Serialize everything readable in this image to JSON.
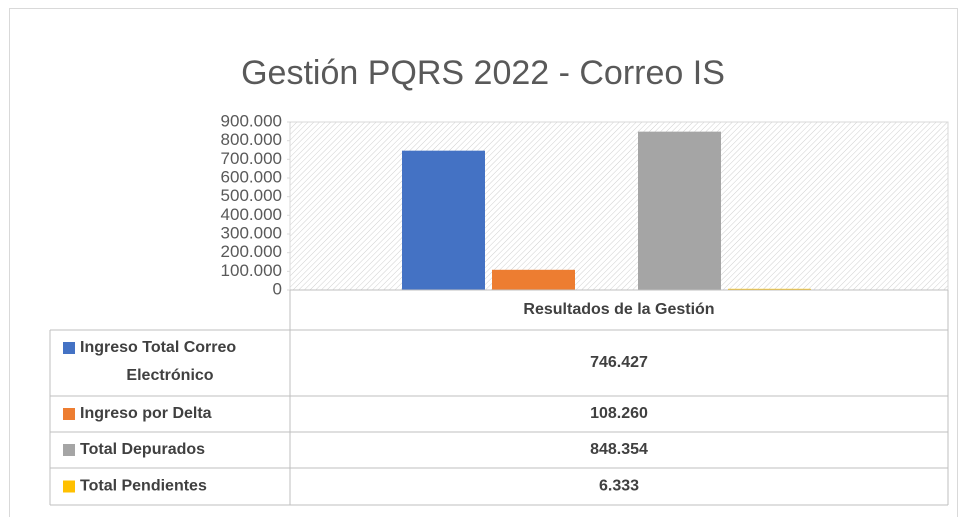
{
  "chart_data": {
    "type": "bar",
    "title": "Gestión PQRS 2022 - Correo IS",
    "categories": [
      "Resultados de la Gestión"
    ],
    "series": [
      {
        "name": "Ingreso Total Correo Electrónico",
        "color": "#4472c4",
        "values": [
          746427
        ],
        "value_labels": [
          "746.427"
        ]
      },
      {
        "name": "Ingreso por Delta",
        "color": "#ed7d31",
        "values": [
          108260
        ],
        "value_labels": [
          "108.260"
        ]
      },
      {
        "name": "Total Depurados",
        "color": "#a5a5a5",
        "values": [
          848354
        ],
        "value_labels": [
          "848.354"
        ]
      },
      {
        "name": "Total Pendientes",
        "color": "#ffc000",
        "values": [
          6333
        ],
        "value_labels": [
          "6.333"
        ]
      }
    ],
    "ylim": [
      0,
      900000
    ],
    "yticks": [
      0,
      {
        "value": 100000,
        "label": "100.000"
      },
      {
        "value": 200000,
        "label": "200.000"
      },
      {
        "value": 300000,
        "label": "300.000"
      },
      {
        "value": 400000,
        "label": "400.000"
      },
      {
        "value": 500000,
        "label": "500.000"
      },
      {
        "value": 600000,
        "label": "600.000"
      },
      {
        "value": 700000,
        "label": "700.000"
      },
      {
        "value": 800000,
        "label": "800.000"
      },
      {
        "value": 900000,
        "label": "900.000"
      }
    ],
    "data_table": true
  }
}
